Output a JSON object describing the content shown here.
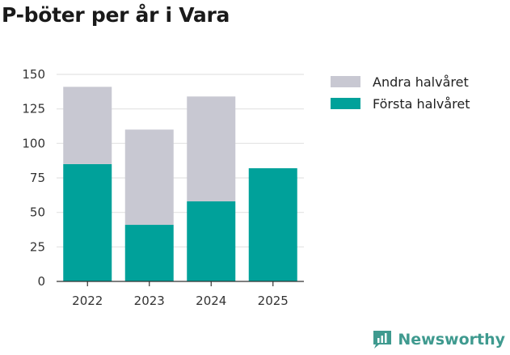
{
  "chart_data": {
    "type": "bar",
    "stacked": true,
    "title": "P-böter per år i Vara",
    "categories": [
      "2022",
      "2023",
      "2024",
      "2025"
    ],
    "series": [
      {
        "name": "Första halvåret",
        "color": "#00a19a",
        "values": [
          85,
          41,
          58,
          82
        ]
      },
      {
        "name": "Andra halvåret",
        "color": "#c8c8d2",
        "values": [
          56,
          69,
          76,
          0
        ]
      }
    ],
    "legend": [
      "Andra halvåret",
      "Första halvåret"
    ],
    "legend_position": "right",
    "ylim": [
      0,
      150
    ],
    "yticks": [
      "0",
      "25",
      "50",
      "75",
      "100",
      "125",
      "150"
    ],
    "ytick_values": [
      0,
      25,
      50,
      75,
      100,
      125,
      150
    ],
    "grid": true,
    "xlabel": "",
    "ylabel": ""
  },
  "brand": {
    "name": "Newsworthy",
    "color": "#3f9a8f"
  }
}
